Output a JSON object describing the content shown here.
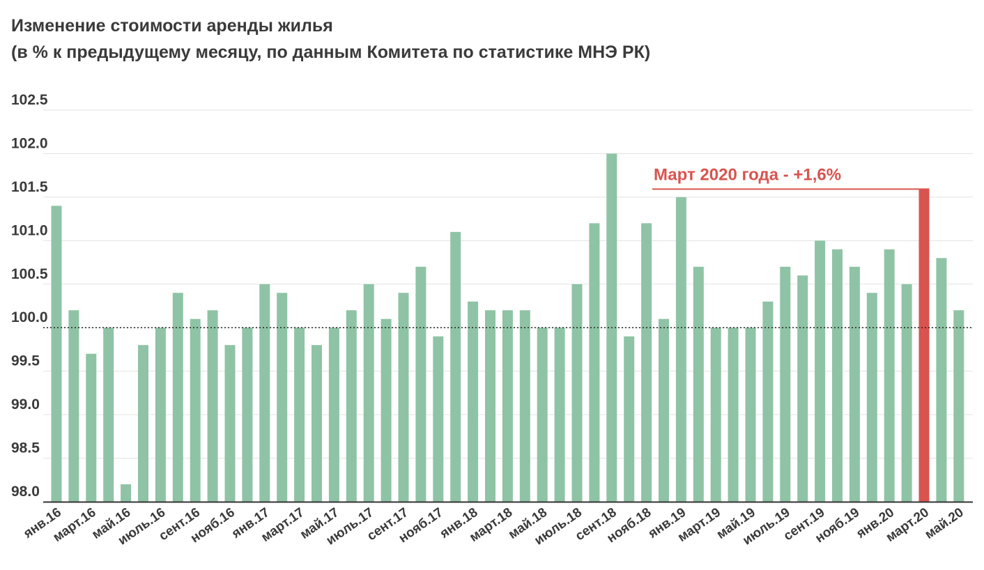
{
  "header": {
    "title": "Изменение стоимости аренды жилья",
    "subtitle": "(в % к предыдущему месяцу, по данным Комитета по статистике МНЭ РК)"
  },
  "chart_data": {
    "type": "bar",
    "title": "Изменение стоимости аренды жилья",
    "subtitle": "(в % к предыдущему месяцу, по данным Комитета по статистике МНЭ РК)",
    "xlabel": "",
    "ylabel": "",
    "ylim": [
      98.0,
      102.5
    ],
    "yticks": [
      "98.0",
      "98.5",
      "99.0",
      "99.5",
      "100.0",
      "100.5",
      "101.0",
      "101.5",
      "102.0",
      "102.5"
    ],
    "baseline": 100.0,
    "grid": true,
    "categories": [
      "янв.16",
      "февр.16",
      "март.16",
      "апр.16",
      "май.16",
      "июнь.16",
      "июль.16",
      "авг.16",
      "сент.16",
      "окт.16",
      "нояб.16",
      "дек.16",
      "янв.17",
      "февр.17",
      "март.17",
      "апр.17",
      "май.17",
      "июнь.17",
      "июль.17",
      "авг.17",
      "сент.17",
      "окт.17",
      "нояб.17",
      "дек.17",
      "янв.18",
      "февр.18",
      "март.18",
      "апр.18",
      "май.18",
      "июнь.18",
      "июль.18",
      "авг.18",
      "сент.18",
      "окт.18",
      "нояб.18",
      "дек.18",
      "янв.19",
      "февр.19",
      "март.19",
      "апр.19",
      "май.19",
      "июнь.19",
      "июль.19",
      "авг.19",
      "сент.19",
      "окт.19",
      "нояб.19",
      "дек.19",
      "янв.20",
      "февр.20",
      "март.20",
      "апр.20",
      "май.20"
    ],
    "visible_tick_labels": [
      "янв.16",
      "март.16",
      "май.16",
      "июль.16",
      "сент.16",
      "нояб.16",
      "янв.17",
      "март.17",
      "май.17",
      "июль.17",
      "сент.17",
      "нояб.17",
      "янв.18",
      "март.18",
      "май.18",
      "июль.18",
      "сент.18",
      "нояб.18",
      "янв.19",
      "март.19",
      "май.19",
      "июль.19",
      "сент.19",
      "нояб.19",
      "янв.20",
      "март.20",
      "май.20"
    ],
    "values": [
      101.4,
      100.2,
      99.7,
      100.0,
      98.2,
      99.8,
      100.0,
      100.4,
      100.1,
      100.2,
      99.8,
      100.0,
      100.5,
      100.4,
      100.0,
      99.8,
      100.0,
      100.2,
      100.5,
      100.1,
      100.4,
      100.7,
      99.9,
      101.1,
      100.3,
      100.2,
      100.2,
      100.2,
      100.0,
      100.0,
      100.5,
      101.2,
      102.0,
      99.9,
      101.2,
      100.1,
      101.5,
      100.7,
      100.0,
      100.0,
      100.0,
      100.3,
      100.7,
      100.6,
      101.0,
      100.9,
      100.7,
      100.4,
      100.9,
      100.5,
      101.6,
      100.8,
      100.2
    ],
    "highlight_index": 50,
    "annotation": "Март 2020 года - +1,6%",
    "colors": {
      "bar": "#8fc3a5",
      "highlight": "#d9534f",
      "grid": "#e3e3e3",
      "axis": "#333333",
      "baseline": "#222222",
      "annotation": "#d9534f"
    }
  }
}
